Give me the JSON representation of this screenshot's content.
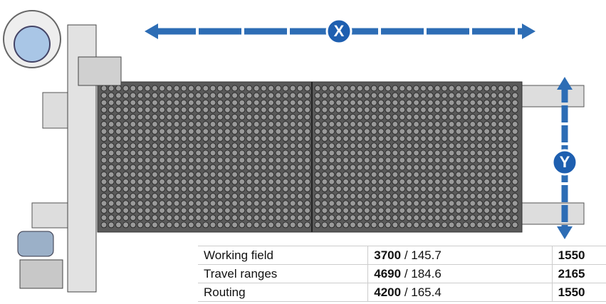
{
  "diagram": {
    "axes": {
      "x_label": "X",
      "y_label": "Y"
    },
    "table": {
      "rows": [
        {
          "name": "Working field",
          "x_mm": "3700",
          "x_rest": "/ 145.7",
          "y_mm": "1550"
        },
        {
          "name": "Travel ranges",
          "x_mm": "4690",
          "x_rest": "/ 184.6",
          "y_mm": "2165"
        },
        {
          "name": "Routing",
          "x_mm": "4200",
          "x_rest": "/ 165.4",
          "y_mm": "1550"
        }
      ]
    }
  }
}
